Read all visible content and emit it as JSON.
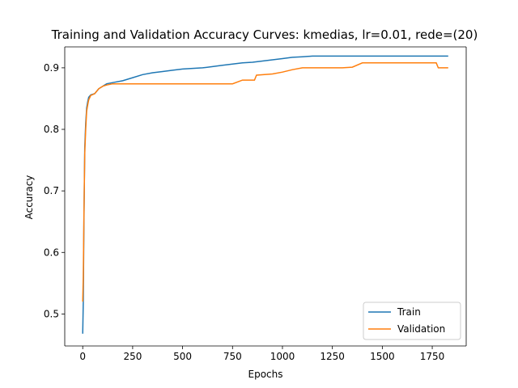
{
  "chart_data": {
    "type": "line",
    "title": "Training and Validation Accuracy Curves: kmedias, lr=0.01, rede=(20)",
    "xlabel": "Epochs",
    "ylabel": "Accuracy",
    "xlim": [
      -90,
      1920
    ],
    "ylim": [
      0.448,
      0.934
    ],
    "xticks": [
      0,
      250,
      500,
      750,
      1000,
      1250,
      1500,
      1750
    ],
    "yticks": [
      0.5,
      0.6,
      0.7,
      0.8,
      0.9
    ],
    "ytick_labels": [
      "0.5",
      "0.6",
      "0.7",
      "0.8",
      "0.9"
    ],
    "grid": false,
    "legend_position": "lower-right",
    "colors": {
      "Train": "#1f77b4",
      "Validation": "#ff7f0e"
    },
    "series": [
      {
        "name": "Train",
        "points": [
          [
            0,
            0.468
          ],
          [
            3,
            0.52
          ],
          [
            6,
            0.65
          ],
          [
            10,
            0.77
          ],
          [
            15,
            0.81
          ],
          [
            20,
            0.835
          ],
          [
            25,
            0.845
          ],
          [
            30,
            0.852
          ],
          [
            40,
            0.856
          ],
          [
            60,
            0.858
          ],
          [
            80,
            0.866
          ],
          [
            100,
            0.87
          ],
          [
            120,
            0.874
          ],
          [
            150,
            0.876
          ],
          [
            200,
            0.879
          ],
          [
            250,
            0.884
          ],
          [
            300,
            0.889
          ],
          [
            350,
            0.892
          ],
          [
            400,
            0.894
          ],
          [
            450,
            0.896
          ],
          [
            500,
            0.898
          ],
          [
            550,
            0.899
          ],
          [
            600,
            0.9
          ],
          [
            650,
            0.902
          ],
          [
            700,
            0.904
          ],
          [
            750,
            0.906
          ],
          [
            800,
            0.908
          ],
          [
            850,
            0.909
          ],
          [
            900,
            0.911
          ],
          [
            950,
            0.913
          ],
          [
            1000,
            0.915
          ],
          [
            1050,
            0.917
          ],
          [
            1100,
            0.918
          ],
          [
            1150,
            0.919
          ],
          [
            1200,
            0.919
          ],
          [
            1300,
            0.919
          ],
          [
            1400,
            0.919
          ],
          [
            1500,
            0.919
          ],
          [
            1600,
            0.919
          ],
          [
            1700,
            0.919
          ],
          [
            1830,
            0.919
          ]
        ]
      },
      {
        "name": "Validation",
        "points": [
          [
            0,
            0.52
          ],
          [
            3,
            0.56
          ],
          [
            6,
            0.66
          ],
          [
            10,
            0.76
          ],
          [
            15,
            0.8
          ],
          [
            20,
            0.83
          ],
          [
            25,
            0.84
          ],
          [
            30,
            0.848
          ],
          [
            40,
            0.855
          ],
          [
            60,
            0.858
          ],
          [
            80,
            0.866
          ],
          [
            100,
            0.87
          ],
          [
            120,
            0.872
          ],
          [
            150,
            0.874
          ],
          [
            200,
            0.874
          ],
          [
            300,
            0.874
          ],
          [
            400,
            0.874
          ],
          [
            500,
            0.874
          ],
          [
            600,
            0.874
          ],
          [
            700,
            0.874
          ],
          [
            750,
            0.874
          ],
          [
            800,
            0.88
          ],
          [
            860,
            0.88
          ],
          [
            870,
            0.888
          ],
          [
            950,
            0.89
          ],
          [
            1000,
            0.893
          ],
          [
            1050,
            0.897
          ],
          [
            1100,
            0.9
          ],
          [
            1200,
            0.9
          ],
          [
            1300,
            0.9
          ],
          [
            1350,
            0.901
          ],
          [
            1400,
            0.908
          ],
          [
            1500,
            0.908
          ],
          [
            1600,
            0.908
          ],
          [
            1700,
            0.908
          ],
          [
            1770,
            0.908
          ],
          [
            1780,
            0.9
          ],
          [
            1830,
            0.9
          ]
        ]
      }
    ]
  }
}
